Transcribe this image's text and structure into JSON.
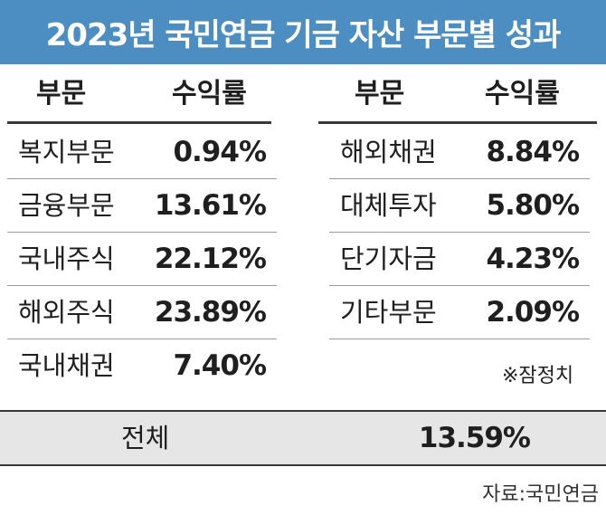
{
  "title": "2023년 국민연금 기금 자산 부문별 성과",
  "header": {
    "left_category": "부문",
    "left_return": "수익률",
    "right_category": "부문",
    "right_return": "수익률"
  },
  "chart_data": {
    "type": "table",
    "title": "2023년 국민연금 기금 자산 부문별 성과",
    "columns": [
      "부문",
      "수익률"
    ],
    "left": [
      {
        "label": "복지부문",
        "value": "0.94%"
      },
      {
        "label": "금융부문",
        "value": "13.61%"
      },
      {
        "label": "국내주식",
        "value": "22.12%"
      },
      {
        "label": "해외주식",
        "value": "23.89%"
      },
      {
        "label": "국내채권",
        "value": "7.40%"
      }
    ],
    "right": [
      {
        "label": "해외채권",
        "value": "8.84%"
      },
      {
        "label": "대체투자",
        "value": "5.80%"
      },
      {
        "label": "단기자금",
        "value": "4.23%"
      },
      {
        "label": "기타부문",
        "value": "2.09%"
      }
    ],
    "total": {
      "label": "전체",
      "value": "13.59%"
    }
  },
  "note": "※잠정치",
  "source": "자료:국민연금",
  "colors": {
    "title_bar": "#4d8ec2",
    "total_bar": "#e6e6e6"
  }
}
